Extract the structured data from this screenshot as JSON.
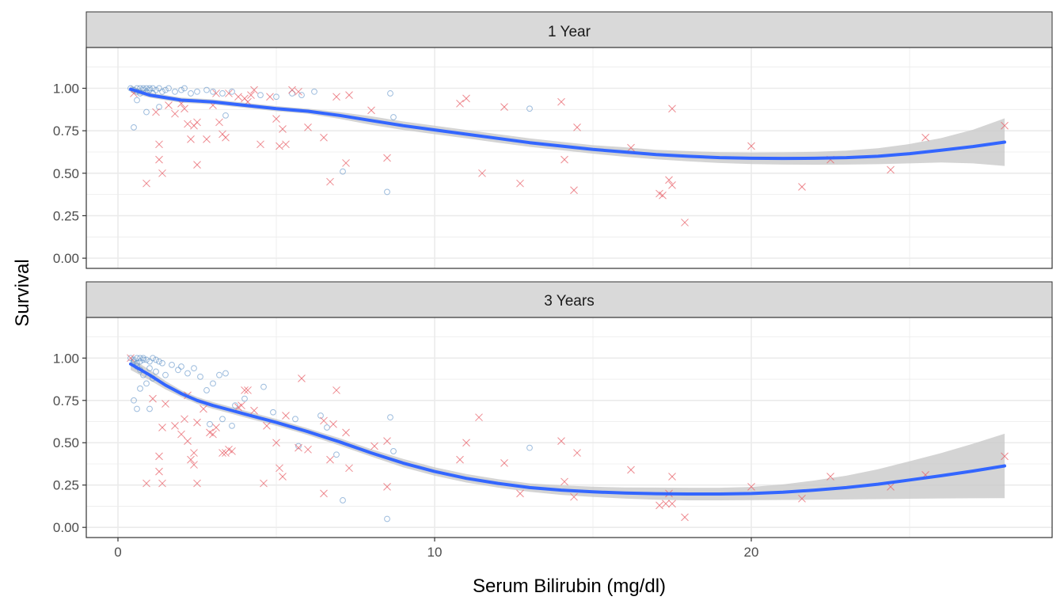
{
  "chart_data": {
    "type": "scatter",
    "xlabel": "Serum Bilirubin (mg/dl)",
    "ylabel": "Survival",
    "xlim": [
      -1,
      29.5
    ],
    "ylim": [
      -0.06,
      1.24
    ],
    "x_ticks": [
      0,
      10,
      20
    ],
    "x_tick_labels": [
      "0",
      "10",
      "20"
    ],
    "y_ticks": [
      0,
      0.25,
      0.5,
      0.75,
      1.0
    ],
    "y_tick_labels": [
      "0.00",
      "0.25",
      "0.50",
      "0.75",
      "1.00"
    ],
    "grid": true,
    "legend": "none",
    "colors": {
      "censored": "#5b8fc7",
      "event": "#e8636b",
      "smooth": "#3366ff",
      "ribbon": "#c9c9c9",
      "strip": "#d9d9d9",
      "grid": "#ebebeb"
    },
    "panels": [
      {
        "title": "1 Year",
        "smooth": {
          "x": [
            0.4,
            1,
            2,
            3,
            4,
            5,
            6,
            7,
            8,
            9,
            10,
            11,
            12,
            13,
            14,
            15,
            16,
            17,
            18,
            19,
            20,
            21,
            22,
            23,
            24,
            25,
            26,
            27,
            28
          ],
          "y": [
            0.995,
            0.96,
            0.93,
            0.92,
            0.9,
            0.88,
            0.865,
            0.84,
            0.81,
            0.78,
            0.755,
            0.73,
            0.705,
            0.68,
            0.66,
            0.64,
            0.625,
            0.61,
            0.6,
            0.592,
            0.588,
            0.587,
            0.588,
            0.592,
            0.6,
            0.615,
            0.635,
            0.657,
            0.683
          ],
          "lower": [
            0.975,
            0.945,
            0.915,
            0.905,
            0.885,
            0.865,
            0.85,
            0.82,
            0.785,
            0.755,
            0.73,
            0.705,
            0.68,
            0.655,
            0.635,
            0.615,
            0.597,
            0.582,
            0.57,
            0.56,
            0.554,
            0.551,
            0.55,
            0.551,
            0.553,
            0.558,
            0.563,
            0.558,
            0.543
          ],
          "upper": [
            1.015,
            0.975,
            0.945,
            0.935,
            0.915,
            0.895,
            0.88,
            0.86,
            0.835,
            0.805,
            0.78,
            0.755,
            0.73,
            0.705,
            0.685,
            0.665,
            0.653,
            0.638,
            0.63,
            0.624,
            0.622,
            0.623,
            0.626,
            0.633,
            0.647,
            0.672,
            0.707,
            0.756,
            0.823
          ]
        },
        "censored": {
          "x": [
            0.4,
            0.5,
            0.6,
            0.6,
            0.7,
            0.7,
            0.8,
            0.8,
            0.9,
            0.9,
            1.0,
            1.0,
            1.1,
            1.1,
            1.2,
            1.3,
            1.4,
            1.5,
            1.6,
            1.8,
            2.0,
            2.1,
            2.3,
            2.5,
            2.8,
            3.0,
            3.3,
            3.6,
            4.5,
            5.0,
            5.5,
            5.8,
            6.2,
            0.6,
            0.9,
            1.3,
            3.4,
            0.5,
            7.1,
            8.6,
            8.7,
            13.0,
            8.5
          ],
          "y": [
            1.0,
            0.99,
            1.0,
            0.98,
            1.0,
            0.97,
            1.0,
            0.99,
            1.0,
            0.98,
            1.0,
            0.99,
            1.0,
            0.97,
            0.99,
            1.0,
            0.98,
            0.99,
            1.0,
            0.98,
            0.99,
            1.0,
            0.97,
            0.98,
            0.99,
            0.98,
            0.97,
            0.98,
            0.96,
            0.95,
            0.97,
            0.96,
            0.98,
            0.93,
            0.86,
            0.89,
            0.84,
            0.77,
            0.51,
            0.97,
            0.83,
            0.88,
            0.39
          ]
        },
        "event": {
          "x": [
            0.5,
            0.9,
            1.2,
            1.3,
            1.3,
            1.4,
            1.6,
            1.8,
            2.0,
            2.1,
            2.2,
            2.3,
            2.4,
            2.5,
            2.8,
            3.0,
            3.2,
            3.3,
            3.4,
            3.5,
            3.8,
            4.0,
            4.3,
            4.5,
            4.8,
            5.0,
            5.1,
            5.2,
            5.3,
            5.5,
            6.0,
            6.5,
            6.7,
            7.2,
            7.3,
            8.0,
            8.5,
            10.8,
            11.0,
            11.5,
            12.2,
            12.7,
            14.0,
            14.4,
            14.5,
            14.1,
            16.2,
            17.1,
            17.2,
            17.4,
            17.5,
            17.5,
            17.9,
            20.0,
            21.6,
            22.5,
            24.4,
            25.5,
            28.0,
            2.5,
            3.1,
            4.1,
            4.2,
            5.7,
            6.9
          ],
          "y": [
            0.97,
            0.44,
            0.86,
            0.67,
            0.58,
            0.5,
            0.9,
            0.85,
            0.91,
            0.88,
            0.79,
            0.7,
            0.78,
            0.55,
            0.7,
            0.9,
            0.8,
            0.73,
            0.71,
            0.97,
            0.95,
            0.94,
            0.99,
            0.67,
            0.95,
            0.82,
            0.66,
            0.76,
            0.67,
            0.99,
            0.77,
            0.71,
            0.45,
            0.56,
            0.96,
            0.87,
            0.59,
            0.91,
            0.94,
            0.5,
            0.89,
            0.44,
            0.92,
            0.4,
            0.77,
            0.58,
            0.65,
            0.38,
            0.37,
            0.46,
            0.43,
            0.88,
            0.21,
            0.66,
            0.42,
            0.58,
            0.52,
            0.71,
            0.78,
            0.8,
            0.97,
            0.92,
            0.96,
            0.98,
            0.95
          ]
        }
      },
      {
        "title": "3 Years",
        "smooth": {
          "x": [
            0.4,
            1,
            1.5,
            2,
            2.5,
            3,
            3.5,
            4,
            5,
            6,
            7,
            8,
            9,
            10,
            11,
            12,
            13,
            14,
            15,
            16,
            17,
            18,
            19,
            20,
            21,
            22,
            23,
            24,
            25,
            26,
            27,
            28
          ],
          "y": [
            0.965,
            0.9,
            0.84,
            0.79,
            0.75,
            0.72,
            0.695,
            0.67,
            0.62,
            0.565,
            0.505,
            0.44,
            0.38,
            0.33,
            0.29,
            0.26,
            0.235,
            0.22,
            0.21,
            0.203,
            0.199,
            0.197,
            0.197,
            0.2,
            0.208,
            0.22,
            0.235,
            0.255,
            0.28,
            0.305,
            0.333,
            0.363
          ],
          "lower": [
            0.93,
            0.87,
            0.815,
            0.77,
            0.73,
            0.7,
            0.675,
            0.65,
            0.6,
            0.545,
            0.483,
            0.418,
            0.355,
            0.305,
            0.265,
            0.235,
            0.21,
            0.192,
            0.18,
            0.17,
            0.163,
            0.16,
            0.16,
            0.161,
            0.162,
            0.163,
            0.165,
            0.167,
            0.169,
            0.171,
            0.172,
            0.173
          ],
          "upper": [
            1.0,
            0.93,
            0.865,
            0.81,
            0.77,
            0.74,
            0.715,
            0.69,
            0.64,
            0.585,
            0.527,
            0.462,
            0.405,
            0.355,
            0.315,
            0.285,
            0.26,
            0.248,
            0.24,
            0.236,
            0.235,
            0.234,
            0.234,
            0.239,
            0.254,
            0.277,
            0.305,
            0.343,
            0.391,
            0.439,
            0.494,
            0.553
          ]
        },
        "censored": {
          "x": [
            0.4,
            0.5,
            0.5,
            0.6,
            0.6,
            0.7,
            0.7,
            0.8,
            0.8,
            0.9,
            1.0,
            1.1,
            1.2,
            1.3,
            1.4,
            0.6,
            0.7,
            0.8,
            1.0,
            1.2,
            1.5,
            1.7,
            1.9,
            2.0,
            2.2,
            2.4,
            0.5,
            0.6,
            0.7,
            0.9,
            1.0,
            1.1,
            2.6,
            2.8,
            3.0,
            3.2,
            3.4,
            3.7,
            4.0,
            2.9,
            3.3,
            3.6,
            4.6,
            4.9,
            5.6,
            5.7,
            6.4,
            6.6,
            6.9,
            7.1,
            8.7,
            8.6,
            13.0,
            8.5
          ],
          "y": [
            1.0,
            0.99,
            0.98,
            1.0,
            0.97,
            1.0,
            0.98,
            0.99,
            1.0,
            0.99,
            0.98,
            1.0,
            0.99,
            0.98,
            0.97,
            0.95,
            0.93,
            0.9,
            0.94,
            0.92,
            0.9,
            0.96,
            0.93,
            0.95,
            0.91,
            0.94,
            0.75,
            0.7,
            0.82,
            0.85,
            0.7,
            0.88,
            0.89,
            0.81,
            0.85,
            0.9,
            0.91,
            0.72,
            0.76,
            0.61,
            0.64,
            0.6,
            0.83,
            0.68,
            0.64,
            0.48,
            0.66,
            0.59,
            0.43,
            0.16,
            0.45,
            0.65,
            0.47,
            0.05
          ]
        },
        "event": {
          "x": [
            0.4,
            0.9,
            1.1,
            1.3,
            1.3,
            1.4,
            1.4,
            1.5,
            1.8,
            2.0,
            2.1,
            2.2,
            2.3,
            2.4,
            2.4,
            2.5,
            2.5,
            2.7,
            2.9,
            3.0,
            3.1,
            3.3,
            3.4,
            3.5,
            3.6,
            3.8,
            4.0,
            4.3,
            4.6,
            4.7,
            5.0,
            5.1,
            5.2,
            5.3,
            5.8,
            6.0,
            6.5,
            6.7,
            6.9,
            7.2,
            7.3,
            8.1,
            8.5,
            8.5,
            10.8,
            11.0,
            11.4,
            12.2,
            12.7,
            14.0,
            14.4,
            14.5,
            14.1,
            16.2,
            17.1,
            17.3,
            17.4,
            17.5,
            17.5,
            17.9,
            20.0,
            21.6,
            22.5,
            24.4,
            25.5,
            28.0,
            2.2,
            3.9,
            4.1,
            5.7,
            6.5,
            6.8
          ],
          "y": [
            1.0,
            0.26,
            0.76,
            0.42,
            0.33,
            0.26,
            0.59,
            0.73,
            0.6,
            0.55,
            0.64,
            0.51,
            0.4,
            0.37,
            0.44,
            0.26,
            0.62,
            0.7,
            0.56,
            0.55,
            0.59,
            0.44,
            0.44,
            0.46,
            0.45,
            0.71,
            0.81,
            0.69,
            0.26,
            0.6,
            0.5,
            0.35,
            0.3,
            0.66,
            0.88,
            0.46,
            0.2,
            0.4,
            0.81,
            0.56,
            0.35,
            0.48,
            0.51,
            0.24,
            0.4,
            0.5,
            0.65,
            0.38,
            0.2,
            0.51,
            0.18,
            0.44,
            0.27,
            0.34,
            0.13,
            0.14,
            0.2,
            0.3,
            0.14,
            0.06,
            0.24,
            0.17,
            0.3,
            0.24,
            0.31,
            0.42,
            0.78,
            0.72,
            0.81,
            0.47,
            0.63,
            0.61
          ]
        }
      }
    ]
  }
}
